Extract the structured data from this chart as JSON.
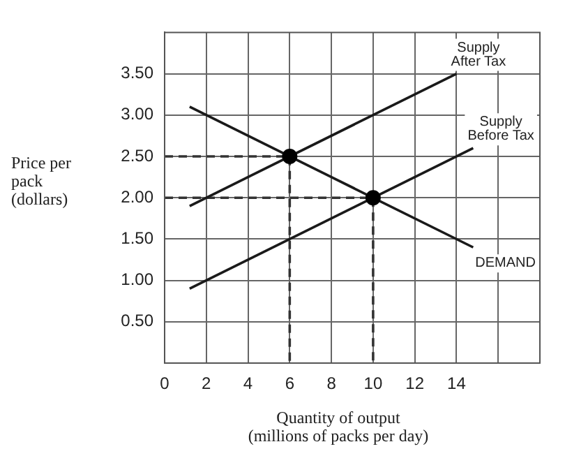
{
  "chart_data": {
    "type": "line",
    "xlabel": "Quantity of output\n(millions of packs per day)",
    "ylabel": "Price per pack (dollars)",
    "xlim": [
      0,
      18
    ],
    "xticks": [
      {
        "value": 0,
        "label": "0"
      },
      2,
      4,
      6,
      8,
      10,
      12,
      14,
      {
        "value": 16,
        "label": null
      }
    ],
    "ylim": [
      0,
      4
    ],
    "yticks": [
      {
        "value": 0.5,
        "label": "0.50"
      },
      {
        "value": 1,
        "label": "1.00"
      },
      {
        "value": 1.5,
        "label": "1.50"
      },
      {
        "value": 2,
        "label": "2.00"
      },
      {
        "value": 2.5,
        "label": "2.50"
      },
      {
        "value": 3,
        "label": "3.00"
      },
      {
        "value": 3.5,
        "label": "3.50"
      }
    ],
    "grid": true,
    "legend": false,
    "marker": "none",
    "line_style": "solid",
    "series": [
      {
        "name": "Supply After Tax",
        "color": "#1a1a1a",
        "x": [
          1.2,
          14
        ],
        "values": [
          1.9,
          3.5
        ]
      },
      {
        "name": "Supply Before Tax",
        "color": "#1a1a1a",
        "x": [
          1.2,
          14.8
        ],
        "values": [
          0.9,
          2.6
        ]
      },
      {
        "name": "DEMAND",
        "color": "#1a1a1a",
        "x": [
          1.2,
          14.8
        ],
        "values": [
          3.1,
          1.4
        ]
      },
      {
        "color": "#333333",
        "line_style": "dashed",
        "x": [
          0,
          6,
          6
        ],
        "values": [
          2.5,
          2.5,
          0
        ]
      },
      {
        "color": "#333333",
        "line_style": "dashed",
        "x": [
          0,
          10,
          10
        ],
        "values": [
          2,
          2,
          0
        ]
      },
      {
        "type": "scatter",
        "marker": "circle",
        "color": "#000000",
        "x": [
          6,
          10
        ],
        "values": [
          2.5,
          2
        ]
      }
    ]
  }
}
